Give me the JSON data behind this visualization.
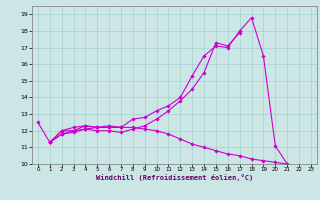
{
  "title": "",
  "xlabel": "Windchill (Refroidissement éolien,°C)",
  "ylabel": "",
  "bg_color": "#cce5e5",
  "line_color": "#cc00cc",
  "xlim": [
    -0.5,
    23.5
  ],
  "ylim": [
    10,
    19.5
  ],
  "xticks": [
    0,
    1,
    2,
    3,
    4,
    5,
    6,
    7,
    8,
    9,
    10,
    11,
    12,
    13,
    14,
    15,
    16,
    17,
    18,
    19,
    20,
    21,
    22,
    23
  ],
  "yticks": [
    10,
    11,
    12,
    13,
    14,
    15,
    16,
    17,
    18,
    19
  ],
  "series": [
    {
      "x": [
        0,
        1,
        2,
        3,
        4,
        5,
        6,
        7,
        8,
        9,
        10,
        11,
        12,
        13,
        14,
        15,
        16,
        17,
        18,
        19,
        20,
        21
      ],
      "y": [
        12.5,
        11.3,
        12.0,
        12.0,
        12.3,
        12.2,
        12.2,
        12.2,
        12.7,
        12.8,
        13.2,
        13.5,
        14.0,
        15.3,
        16.5,
        17.1,
        17.0,
        18.0,
        18.8,
        16.5,
        11.1,
        10.0
      ]
    },
    {
      "x": [
        1,
        2,
        3,
        4,
        5,
        6,
        7,
        8,
        9,
        10,
        11,
        12,
        13,
        14,
        15,
        16,
        17
      ],
      "y": [
        11.3,
        11.8,
        11.9,
        12.1,
        12.0,
        12.0,
        11.9,
        12.1,
        12.3,
        12.7,
        13.2,
        13.8,
        14.5,
        15.5,
        17.3,
        17.1,
        17.9
      ]
    },
    {
      "x": [
        1,
        2,
        3,
        4,
        5,
        6,
        7
      ],
      "y": [
        11.3,
        12.0,
        12.2,
        12.3,
        12.2,
        12.3,
        12.2
      ]
    },
    {
      "x": [
        1,
        2,
        3,
        4,
        5,
        6,
        7,
        8,
        9,
        10,
        11,
        12,
        13,
        14,
        15,
        16,
        17,
        18,
        19,
        20,
        21
      ],
      "y": [
        11.3,
        11.8,
        12.0,
        12.1,
        12.2,
        12.2,
        12.2,
        12.2,
        12.1,
        12.0,
        11.8,
        11.5,
        11.2,
        11.0,
        10.8,
        10.6,
        10.5,
        10.3,
        10.2,
        10.1,
        10.0
      ]
    }
  ]
}
